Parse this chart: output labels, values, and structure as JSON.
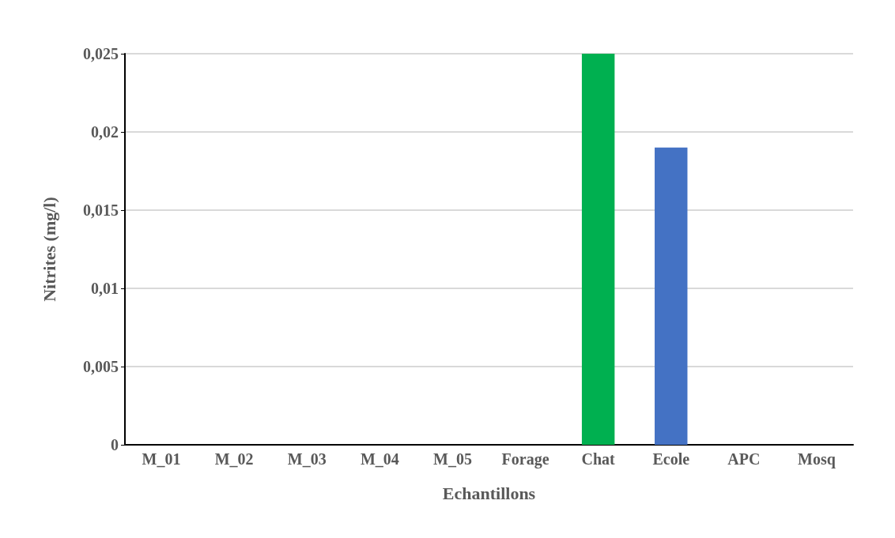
{
  "chart_data": {
    "type": "bar",
    "xlabel": "Echantillons",
    "ylabel": "Nitrites (mg/l)",
    "categories": [
      "M_01",
      "M_02",
      "M_03",
      "M_04",
      "M_05",
      "Forage",
      "Chat",
      "Ecole",
      "APC",
      "Mosq"
    ],
    "values": [
      0,
      0,
      0,
      0,
      0,
      0,
      0.025,
      0.019,
      0,
      0
    ],
    "colors": [
      "#4472c4",
      "#4472c4",
      "#4472c4",
      "#4472c4",
      "#4472c4",
      "#4472c4",
      "#00b050",
      "#4472c4",
      "#4472c4",
      "#4472c4"
    ],
    "ylim": [
      0,
      0.025
    ],
    "yticks": [
      {
        "value": 0,
        "label": "0"
      },
      {
        "value": 0.005,
        "label": "0,005"
      },
      {
        "value": 0.01,
        "label": "0,01"
      },
      {
        "value": 0.015,
        "label": "0,015"
      },
      {
        "value": 0.02,
        "label": "0,02"
      },
      {
        "value": 0.025,
        "label": "0,025"
      }
    ],
    "grid": "y"
  }
}
